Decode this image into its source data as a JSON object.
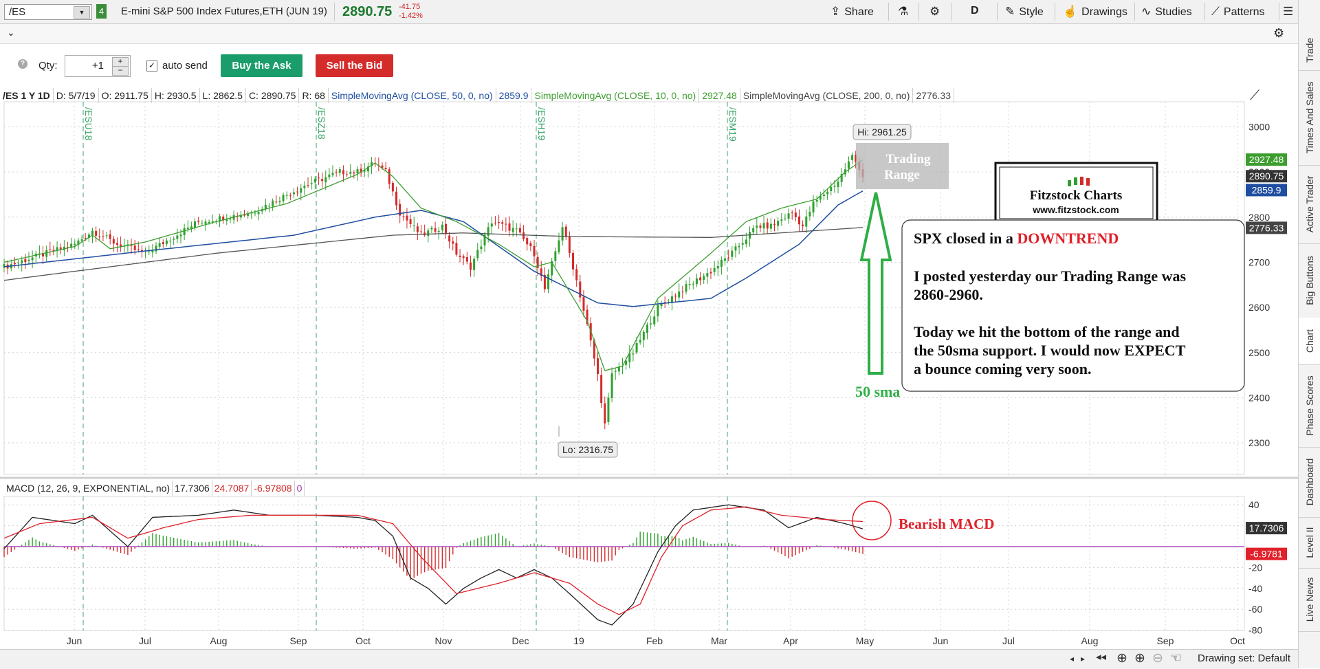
{
  "toolbar": {
    "symbol": "/ES",
    "link_badge": "4",
    "description": "E-mini S&P 500 Index Futures,ETH (JUN 19)",
    "last_price": "2890.75",
    "net_change": "-41.75",
    "pct_change": "-1.42%",
    "share": "Share",
    "timeframe": "D",
    "style": "Style",
    "drawings": "Drawings",
    "studies": "Studies",
    "patterns": "Patterns"
  },
  "order": {
    "help": "?",
    "qty_label": "Qty:",
    "qty_value": "+1",
    "plus": "+",
    "minus": "−",
    "autosend_label": "auto send",
    "buy_label": "Buy the Ask",
    "sell_label": "Sell the Bid"
  },
  "studybar": {
    "symbol": "/ES 1 Y 1D",
    "date": "D: 5/7/19",
    "open": "O: 2911.75",
    "high": "H: 2930.5",
    "low": "L: 2862.5",
    "close": "C: 2890.75",
    "range": "R: 68",
    "sma50_label": "SimpleMovingAvg (CLOSE, 50, 0, no)",
    "sma50_value": "2859.9",
    "sma10_label": "SimpleMovingAvg (CLOSE, 10, 0, no)",
    "sma10_value": "2927.48",
    "sma200_label": "SimpleMovingAvg (CLOSE, 200, 0, no)",
    "sma200_value": "2776.33"
  },
  "macdbar": {
    "label": "MACD (12, 26, 9, EXPONENTIAL, no)",
    "value": "17.7306",
    "avg": "24.7087",
    "diff": "-6.97808",
    "zero": "0"
  },
  "price_axis": {
    "ticks": [
      "3000",
      "2900",
      "2800",
      "2700",
      "2600",
      "2500",
      "2400",
      "2300"
    ]
  },
  "macd_axis": {
    "ticks": [
      "40",
      "20",
      "",
      "-20",
      "-40",
      "-60",
      "-80"
    ]
  },
  "time_axis": {
    "labels": [
      "Jun",
      "Jul",
      "Aug",
      "Sep",
      "Oct",
      "Nov",
      "Dec",
      "19",
      "Feb",
      "Mar",
      "Apr",
      "May",
      "Jun",
      "Jul",
      "Aug",
      "Sep",
      "Oct"
    ]
  },
  "expirations": [
    "/ESU18",
    "/ESZ18",
    "/ESH19",
    "/ESM19"
  ],
  "price_badges": {
    "sma10": "2927.48",
    "last": "2890.75",
    "sma50": "2859.9",
    "sma200": "2776.33"
  },
  "macd_badges": {
    "value": "17.7306",
    "diff": "-6.9781"
  },
  "annotations": {
    "hi": "Hi: 2961.25",
    "lo": "Lo: 2316.75",
    "range_box": [
      "Trading",
      "Range"
    ],
    "logo_title": "Fitzstock Charts",
    "logo_url": "www.fitzstock.com",
    "note_prefix": "SPX closed in a ",
    "note_trend": "DOWNTREND",
    "note_line2": "I posted yesterday our Trading Range was",
    "note_line3": "2860-2960.",
    "note_line4": "Today we hit the bottom of the range and",
    "note_line5": "the 50sma support.  I would now EXPECT",
    "note_line6": "a bounce coming very soon.",
    "sma_label": "50 sma",
    "macd_label": "Bearish MACD"
  },
  "right_tabs": [
    "Trade",
    "Times And Sales",
    "Active Trader",
    "Big Buttons",
    "Chart",
    "Phase Scores",
    "Dashboard",
    "Level II",
    "Live News"
  ],
  "bottom": {
    "drawing_set": "Drawing set: Default"
  },
  "colors": {
    "up": "#2ea12e",
    "down": "#d42a2a",
    "sma50": "#1f4ea0",
    "sma10": "#3d9e2f",
    "sma200": "#555555",
    "annotation_red": "#e0202a",
    "annotation_green": "#2fae46"
  },
  "chart_data": {
    "type": "candlestick",
    "period": "1 Y 1D",
    "price_ylim": [
      2240,
      3040
    ],
    "macd_ylim": [
      -80,
      50
    ],
    "sma50_anchor": [
      [
        0,
        2690
      ],
      [
        40,
        2725
      ],
      [
        82,
        2760
      ],
      [
        105,
        2800
      ],
      [
        118,
        2815
      ],
      [
        130,
        2790
      ],
      [
        150,
        2680
      ],
      [
        168,
        2610
      ],
      [
        178,
        2602
      ],
      [
        200,
        2620
      ],
      [
        210,
        2665
      ],
      [
        225,
        2740
      ],
      [
        236,
        2827
      ],
      [
        243,
        2858
      ]
    ],
    "sma10_anchor": [
      [
        0,
        2700
      ],
      [
        20,
        2735
      ],
      [
        25,
        2760
      ],
      [
        30,
        2730
      ],
      [
        40,
        2745
      ],
      [
        60,
        2790
      ],
      [
        80,
        2830
      ],
      [
        100,
        2895
      ],
      [
        105,
        2920
      ],
      [
        110,
        2890
      ],
      [
        118,
        2820
      ],
      [
        128,
        2790
      ],
      [
        140,
        2740
      ],
      [
        150,
        2690
      ],
      [
        155,
        2700
      ],
      [
        165,
        2570
      ],
      [
        170,
        2460
      ],
      [
        175,
        2470
      ],
      [
        185,
        2620
      ],
      [
        200,
        2720
      ],
      [
        210,
        2790
      ],
      [
        220,
        2820
      ],
      [
        230,
        2840
      ],
      [
        238,
        2900
      ],
      [
        243,
        2927
      ]
    ],
    "sma200_anchor": [
      [
        0,
        2660
      ],
      [
        60,
        2720
      ],
      [
        110,
        2760
      ],
      [
        130,
        2765
      ],
      [
        160,
        2757
      ],
      [
        200,
        2755
      ],
      [
        243,
        2777
      ]
    ],
    "candle_anchor": [
      [
        0,
        2690
      ],
      [
        20,
        2740
      ],
      [
        25,
        2770
      ],
      [
        32,
        2740
      ],
      [
        40,
        2720
      ],
      [
        55,
        2790
      ],
      [
        70,
        2810
      ],
      [
        85,
        2870
      ],
      [
        95,
        2900
      ],
      [
        100,
        2900
      ],
      [
        105,
        2920
      ],
      [
        108,
        2900
      ],
      [
        112,
        2810
      ],
      [
        118,
        2760
      ],
      [
        124,
        2780
      ],
      [
        128,
        2720
      ],
      [
        132,
        2690
      ],
      [
        138,
        2790
      ],
      [
        145,
        2770
      ],
      [
        150,
        2720
      ],
      [
        153,
        2640
      ],
      [
        158,
        2780
      ],
      [
        162,
        2660
      ],
      [
        165,
        2560
      ],
      [
        168,
        2450
      ],
      [
        170,
        2340
      ],
      [
        172,
        2450
      ],
      [
        178,
        2500
      ],
      [
        185,
        2600
      ],
      [
        192,
        2640
      ],
      [
        200,
        2680
      ],
      [
        206,
        2720
      ],
      [
        213,
        2780
      ],
      [
        217,
        2780
      ],
      [
        223,
        2810
      ],
      [
        226,
        2780
      ],
      [
        229,
        2830
      ],
      [
        236,
        2880
      ],
      [
        240,
        2935
      ],
      [
        242,
        2910
      ],
      [
        243,
        2890
      ]
    ],
    "macd_anchor": [
      [
        0,
        -2
      ],
      [
        8,
        28
      ],
      [
        20,
        22
      ],
      [
        25,
        30
      ],
      [
        30,
        15
      ],
      [
        35,
        0
      ],
      [
        42,
        28
      ],
      [
        55,
        30
      ],
      [
        65,
        35
      ],
      [
        75,
        30
      ],
      [
        88,
        30
      ],
      [
        100,
        28
      ],
      [
        105,
        25
      ],
      [
        110,
        10
      ],
      [
        115,
        -30
      ],
      [
        120,
        -40
      ],
      [
        125,
        -55
      ],
      [
        130,
        -40
      ],
      [
        135,
        -30
      ],
      [
        140,
        -22
      ],
      [
        145,
        -30
      ],
      [
        150,
        -22
      ],
      [
        155,
        -30
      ],
      [
        160,
        -45
      ],
      [
        168,
        -70
      ],
      [
        172,
        -75
      ],
      [
        178,
        -55
      ],
      [
        185,
        -5
      ],
      [
        190,
        20
      ],
      [
        195,
        35
      ],
      [
        205,
        40
      ],
      [
        215,
        35
      ],
      [
        222,
        18
      ],
      [
        230,
        28
      ],
      [
        238,
        22
      ],
      [
        243,
        17
      ]
    ],
    "macd_avg_anchor": [
      [
        0,
        8
      ],
      [
        10,
        22
      ],
      [
        25,
        28
      ],
      [
        35,
        8
      ],
      [
        45,
        18
      ],
      [
        55,
        26
      ],
      [
        70,
        30
      ],
      [
        88,
        30
      ],
      [
        100,
        30
      ],
      [
        110,
        22
      ],
      [
        118,
        -10
      ],
      [
        128,
        -45
      ],
      [
        140,
        -35
      ],
      [
        150,
        -25
      ],
      [
        160,
        -35
      ],
      [
        168,
        -55
      ],
      [
        174,
        -65
      ],
      [
        180,
        -55
      ],
      [
        186,
        -10
      ],
      [
        192,
        20
      ],
      [
        200,
        35
      ],
      [
        210,
        38
      ],
      [
        220,
        30
      ],
      [
        232,
        26
      ],
      [
        243,
        24
      ]
    ]
  }
}
